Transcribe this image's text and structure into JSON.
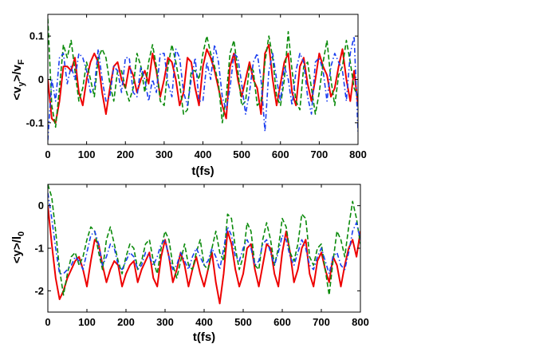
{
  "chart_data": [
    {
      "type": "line",
      "xlabel": "t(fs)",
      "ylabel_main": "<v",
      "ylabel_sub_main": "y",
      "ylabel_mid": ">/v",
      "ylabel_sub_tail": "F",
      "xlim": [
        0,
        800
      ],
      "ylim": [
        -0.15,
        0.15
      ],
      "xticks": [
        "0",
        "100",
        "200",
        "300",
        "400",
        "500",
        "600",
        "700",
        "800"
      ],
      "yticks": [
        "-0.1",
        "0",
        "0.1"
      ],
      "grid": false,
      "series": [
        {
          "color": "#ee0000",
          "style": "solid",
          "x": [
            0,
            10,
            20,
            30,
            40,
            50,
            60,
            70,
            80,
            90,
            100,
            110,
            120,
            130,
            140,
            150,
            160,
            170,
            180,
            190,
            200,
            210,
            220,
            230,
            240,
            250,
            260,
            270,
            280,
            290,
            300,
            310,
            320,
            330,
            340,
            350,
            360,
            370,
            380,
            390,
            400,
            410,
            420,
            430,
            440,
            450,
            460,
            470,
            480,
            490,
            500,
            510,
            520,
            530,
            540,
            550,
            560,
            570,
            580,
            590,
            600,
            610,
            620,
            630,
            640,
            650,
            660,
            670,
            680,
            690,
            700,
            710,
            720,
            730,
            740,
            750,
            760,
            770,
            780,
            790,
            800
          ],
          "y": [
            0.0,
            -0.09,
            -0.1,
            -0.05,
            0.03,
            0.03,
            0.02,
            0.05,
            -0.03,
            -0.06,
            0.0,
            0.04,
            0.06,
            0.04,
            -0.03,
            -0.08,
            -0.02,
            0.03,
            0.04,
            0.0,
            -0.02,
            0.03,
            0.01,
            -0.03,
            0.0,
            0.02,
            -0.01,
            0.06,
            0.02,
            -0.04,
            0.0,
            0.05,
            0.04,
            0.0,
            -0.06,
            -0.03,
            0.05,
            0.04,
            -0.02,
            -0.06,
            0.03,
            0.07,
            0.05,
            0.02,
            -0.02,
            -0.06,
            -0.09,
            0.03,
            0.06,
            0.0,
            -0.04,
            0.0,
            0.04,
            0.0,
            -0.02,
            -0.08,
            0.06,
            0.08,
            0.0,
            -0.06,
            -0.01,
            0.04,
            0.06,
            -0.03,
            -0.06,
            0.03,
            0.05,
            -0.01,
            -0.05,
            0.0,
            0.06,
            0.03,
            0.01,
            -0.04,
            -0.02,
            0.03,
            0.07,
            0.0,
            -0.05,
            0.02,
            -0.06
          ]
        },
        {
          "color": "#0a8a0a",
          "style": "dashed",
          "x": [
            0,
            10,
            20,
            30,
            40,
            50,
            60,
            70,
            80,
            90,
            100,
            110,
            120,
            130,
            140,
            150,
            160,
            170,
            180,
            190,
            200,
            210,
            220,
            230,
            240,
            250,
            260,
            270,
            280,
            290,
            300,
            310,
            320,
            330,
            340,
            350,
            360,
            370,
            380,
            390,
            400,
            410,
            420,
            430,
            440,
            450,
            460,
            470,
            480,
            490,
            500,
            510,
            520,
            530,
            540,
            550,
            560,
            570,
            580,
            590,
            600,
            610,
            620,
            630,
            640,
            650,
            660,
            670,
            680,
            690,
            700,
            710,
            720,
            730,
            740,
            750,
            760,
            770,
            780,
            790,
            800
          ],
          "y": [
            0.14,
            -0.06,
            -0.11,
            -0.02,
            0.08,
            0.05,
            0.09,
            0.02,
            -0.05,
            -0.02,
            0.04,
            0.0,
            -0.04,
            0.05,
            0.07,
            0.05,
            -0.01,
            -0.05,
            0.02,
            0.02,
            -0.02,
            -0.05,
            -0.02,
            0.06,
            0.03,
            -0.03,
            0.04,
            0.08,
            0.03,
            -0.05,
            -0.06,
            0.03,
            0.08,
            0.04,
            -0.01,
            -0.08,
            -0.07,
            0.02,
            0.02,
            0.0,
            0.06,
            0.1,
            0.06,
            0.03,
            -0.01,
            -0.1,
            -0.04,
            0.06,
            0.09,
            0.02,
            -0.06,
            -0.05,
            0.03,
            0.02,
            -0.06,
            -0.05,
            0.04,
            0.1,
            0.05,
            -0.04,
            -0.06,
            0.0,
            0.11,
            0.02,
            -0.05,
            -0.07,
            0.03,
            0.04,
            -0.02,
            -0.08,
            -0.03,
            0.04,
            0.09,
            0.0,
            -0.06,
            0.01,
            0.03,
            0.09,
            0.04,
            -0.02,
            -0.04
          ]
        },
        {
          "color": "#1a3ef0",
          "style": "dashdot",
          "x": [
            0,
            10,
            20,
            30,
            40,
            50,
            60,
            70,
            80,
            90,
            100,
            110,
            120,
            130,
            140,
            150,
            160,
            170,
            180,
            190,
            200,
            210,
            220,
            230,
            240,
            250,
            260,
            270,
            280,
            290,
            300,
            310,
            320,
            330,
            340,
            350,
            360,
            370,
            380,
            390,
            400,
            410,
            420,
            430,
            440,
            450,
            460,
            470,
            480,
            490,
            500,
            510,
            520,
            530,
            540,
            550,
            560,
            570,
            580,
            590,
            600,
            610,
            620,
            630,
            640,
            650,
            660,
            670,
            680,
            690,
            700,
            710,
            720,
            730,
            740,
            750,
            760,
            770,
            780,
            790,
            800
          ],
          "y": [
            -0.14,
            0.0,
            -0.05,
            0.05,
            0.06,
            -0.01,
            0.03,
            0.0,
            0.06,
            0.05,
            0.02,
            -0.03,
            -0.02,
            0.07,
            0.0,
            -0.05,
            -0.04,
            0.03,
            0.02,
            -0.03,
            0.05,
            0.05,
            -0.03,
            -0.04,
            0.03,
            0.0,
            -0.05,
            0.0,
            -0.03,
            0.06,
            0.06,
            -0.01,
            -0.04,
            0.07,
            0.05,
            -0.03,
            -0.06,
            0.0,
            0.05,
            -0.05,
            -0.05,
            0.04,
            0.0,
            0.08,
            0.04,
            -0.04,
            -0.07,
            -0.02,
            0.06,
            0.05,
            -0.01,
            -0.08,
            -0.03,
            0.04,
            0.06,
            0.0,
            -0.12,
            0.02,
            0.06,
            0.0,
            -0.05,
            0.03,
            0.0,
            -0.06,
            0.02,
            0.06,
            0.04,
            -0.04,
            -0.08,
            0.04,
            0.05,
            0.02,
            -0.05,
            0.03,
            0.06,
            0.04,
            0.02,
            -0.05,
            0.06,
            0.1,
            -0.12
          ]
        }
      ]
    },
    {
      "type": "line",
      "xlabel": "t(fs)",
      "ylabel_main": "<y>/l",
      "ylabel_sub_tail": "0",
      "xlim": [
        0,
        800
      ],
      "ylim": [
        -2.5,
        0.5
      ],
      "xticks": [
        "0",
        "100",
        "200",
        "300",
        "400",
        "500",
        "600",
        "700",
        "800"
      ],
      "yticks": [
        "-2",
        "-1",
        "0"
      ],
      "grid": false,
      "series": [
        {
          "color": "#ee0000",
          "style": "solid",
          "x": [
            0,
            10,
            20,
            30,
            40,
            50,
            60,
            70,
            80,
            90,
            100,
            110,
            120,
            130,
            140,
            150,
            160,
            170,
            180,
            190,
            200,
            210,
            220,
            230,
            240,
            250,
            260,
            270,
            280,
            290,
            300,
            310,
            320,
            330,
            340,
            350,
            360,
            370,
            380,
            390,
            400,
            410,
            420,
            430,
            440,
            450,
            460,
            470,
            480,
            490,
            500,
            510,
            520,
            530,
            540,
            550,
            560,
            570,
            580,
            590,
            600,
            610,
            620,
            630,
            640,
            650,
            660,
            670,
            680,
            690,
            700,
            710,
            720,
            730,
            740,
            750,
            760,
            770,
            780,
            790,
            800
          ],
          "y": [
            0.0,
            -0.9,
            -1.7,
            -2.2,
            -2.0,
            -1.7,
            -1.5,
            -1.3,
            -1.2,
            -1.5,
            -1.9,
            -1.3,
            -0.8,
            -0.9,
            -1.4,
            -1.8,
            -1.5,
            -1.3,
            -1.4,
            -1.9,
            -1.6,
            -1.4,
            -1.3,
            -1.8,
            -1.5,
            -1.3,
            -1.1,
            -1.7,
            -1.9,
            -1.2,
            -0.8,
            -1.2,
            -1.8,
            -1.5,
            -1.1,
            -1.4,
            -1.9,
            -1.5,
            -1.2,
            -1.6,
            -1.9,
            -1.5,
            -1.1,
            -1.8,
            -2.3,
            -1.6,
            -0.6,
            -0.9,
            -1.5,
            -1.9,
            -1.6,
            -1.0,
            -0.9,
            -1.5,
            -1.9,
            -1.4,
            -0.9,
            -1.0,
            -1.6,
            -1.9,
            -1.1,
            -0.6,
            -1.1,
            -1.8,
            -1.5,
            -1.0,
            -0.8,
            -1.6,
            -1.9,
            -1.3,
            -1.1,
            -1.5,
            -1.8,
            -1.2,
            -1.4,
            -1.9,
            -1.4,
            -1.0,
            -0.8,
            -1.2,
            -0.6
          ]
        },
        {
          "color": "#0a8a0a",
          "style": "dashed",
          "x": [
            0,
            10,
            20,
            30,
            40,
            50,
            60,
            70,
            80,
            90,
            100,
            110,
            120,
            130,
            140,
            150,
            160,
            170,
            180,
            190,
            200,
            210,
            220,
            230,
            240,
            250,
            260,
            270,
            280,
            290,
            300,
            310,
            320,
            330,
            340,
            350,
            360,
            370,
            380,
            390,
            400,
            410,
            420,
            430,
            440,
            450,
            460,
            470,
            480,
            490,
            500,
            510,
            520,
            530,
            540,
            550,
            560,
            570,
            580,
            590,
            600,
            610,
            620,
            630,
            640,
            650,
            660,
            670,
            680,
            690,
            700,
            710,
            720,
            730,
            740,
            750,
            760,
            770,
            780,
            790,
            800
          ],
          "y": [
            0.5,
            0.2,
            -0.6,
            -1.5,
            -2.1,
            -1.6,
            -1.2,
            -1.1,
            -1.4,
            -1.2,
            -0.8,
            -0.5,
            -0.6,
            -1.1,
            -1.5,
            -0.8,
            -0.5,
            -0.9,
            -1.3,
            -1.6,
            -1.2,
            -0.9,
            -1.0,
            -1.5,
            -1.3,
            -0.9,
            -0.8,
            -1.3,
            -1.6,
            -1.0,
            -0.6,
            -0.8,
            -1.4,
            -1.7,
            -1.3,
            -0.9,
            -1.4,
            -1.5,
            -1.1,
            -0.8,
            -1.4,
            -1.5,
            -1.0,
            -0.6,
            -1.1,
            -1.3,
            -0.2,
            -0.3,
            -1.0,
            -1.5,
            -1.2,
            -0.4,
            -0.6,
            -1.4,
            -1.5,
            -0.8,
            -0.4,
            -0.8,
            -1.4,
            -1.0,
            -0.3,
            -0.5,
            -1.1,
            -1.3,
            -0.9,
            -0.2,
            -0.3,
            -1.2,
            -1.4,
            -1.0,
            -0.9,
            -1.5,
            -2.1,
            -1.3,
            -0.6,
            -0.8,
            -1.2,
            -0.5,
            0.1,
            -0.3,
            -0.9
          ]
        },
        {
          "color": "#1a3ef0",
          "style": "dashdot",
          "x": [
            0,
            10,
            20,
            30,
            40,
            50,
            60,
            70,
            80,
            90,
            100,
            110,
            120,
            130,
            140,
            150,
            160,
            170,
            180,
            190,
            200,
            210,
            220,
            230,
            240,
            250,
            260,
            270,
            280,
            290,
            300,
            310,
            320,
            330,
            340,
            350,
            360,
            370,
            380,
            390,
            400,
            410,
            420,
            430,
            440,
            450,
            460,
            470,
            480,
            490,
            500,
            510,
            520,
            530,
            540,
            550,
            560,
            570,
            580,
            590,
            600,
            610,
            620,
            630,
            640,
            650,
            660,
            670,
            680,
            690,
            700,
            710,
            720,
            730,
            740,
            750,
            760,
            770,
            780,
            790,
            800
          ],
          "y": [
            0.3,
            -0.3,
            -1.0,
            -1.6,
            -1.6,
            -1.5,
            -1.4,
            -1.2,
            -1.3,
            -1.5,
            -1.1,
            -0.7,
            -0.6,
            -0.9,
            -1.4,
            -1.2,
            -0.9,
            -1.0,
            -1.4,
            -1.5,
            -1.3,
            -1.1,
            -1.2,
            -1.5,
            -1.4,
            -1.1,
            -1.2,
            -1.4,
            -1.2,
            -0.9,
            -0.8,
            -1.2,
            -1.5,
            -1.4,
            -1.1,
            -1.3,
            -1.5,
            -1.2,
            -1.0,
            -1.2,
            -1.4,
            -1.3,
            -1.0,
            -1.2,
            -1.5,
            -1.0,
            -0.5,
            -0.7,
            -1.2,
            -1.3,
            -1.0,
            -0.8,
            -1.0,
            -1.4,
            -1.3,
            -0.9,
            -0.8,
            -1.1,
            -1.4,
            -1.1,
            -0.7,
            -0.8,
            -1.2,
            -1.4,
            -1.1,
            -0.8,
            -1.0,
            -1.4,
            -1.5,
            -1.2,
            -1.0,
            -1.3,
            -1.6,
            -1.2,
            -1.1,
            -1.4,
            -1.5,
            -1.1,
            -0.6,
            -0.4,
            -0.8
          ]
        }
      ]
    }
  ]
}
